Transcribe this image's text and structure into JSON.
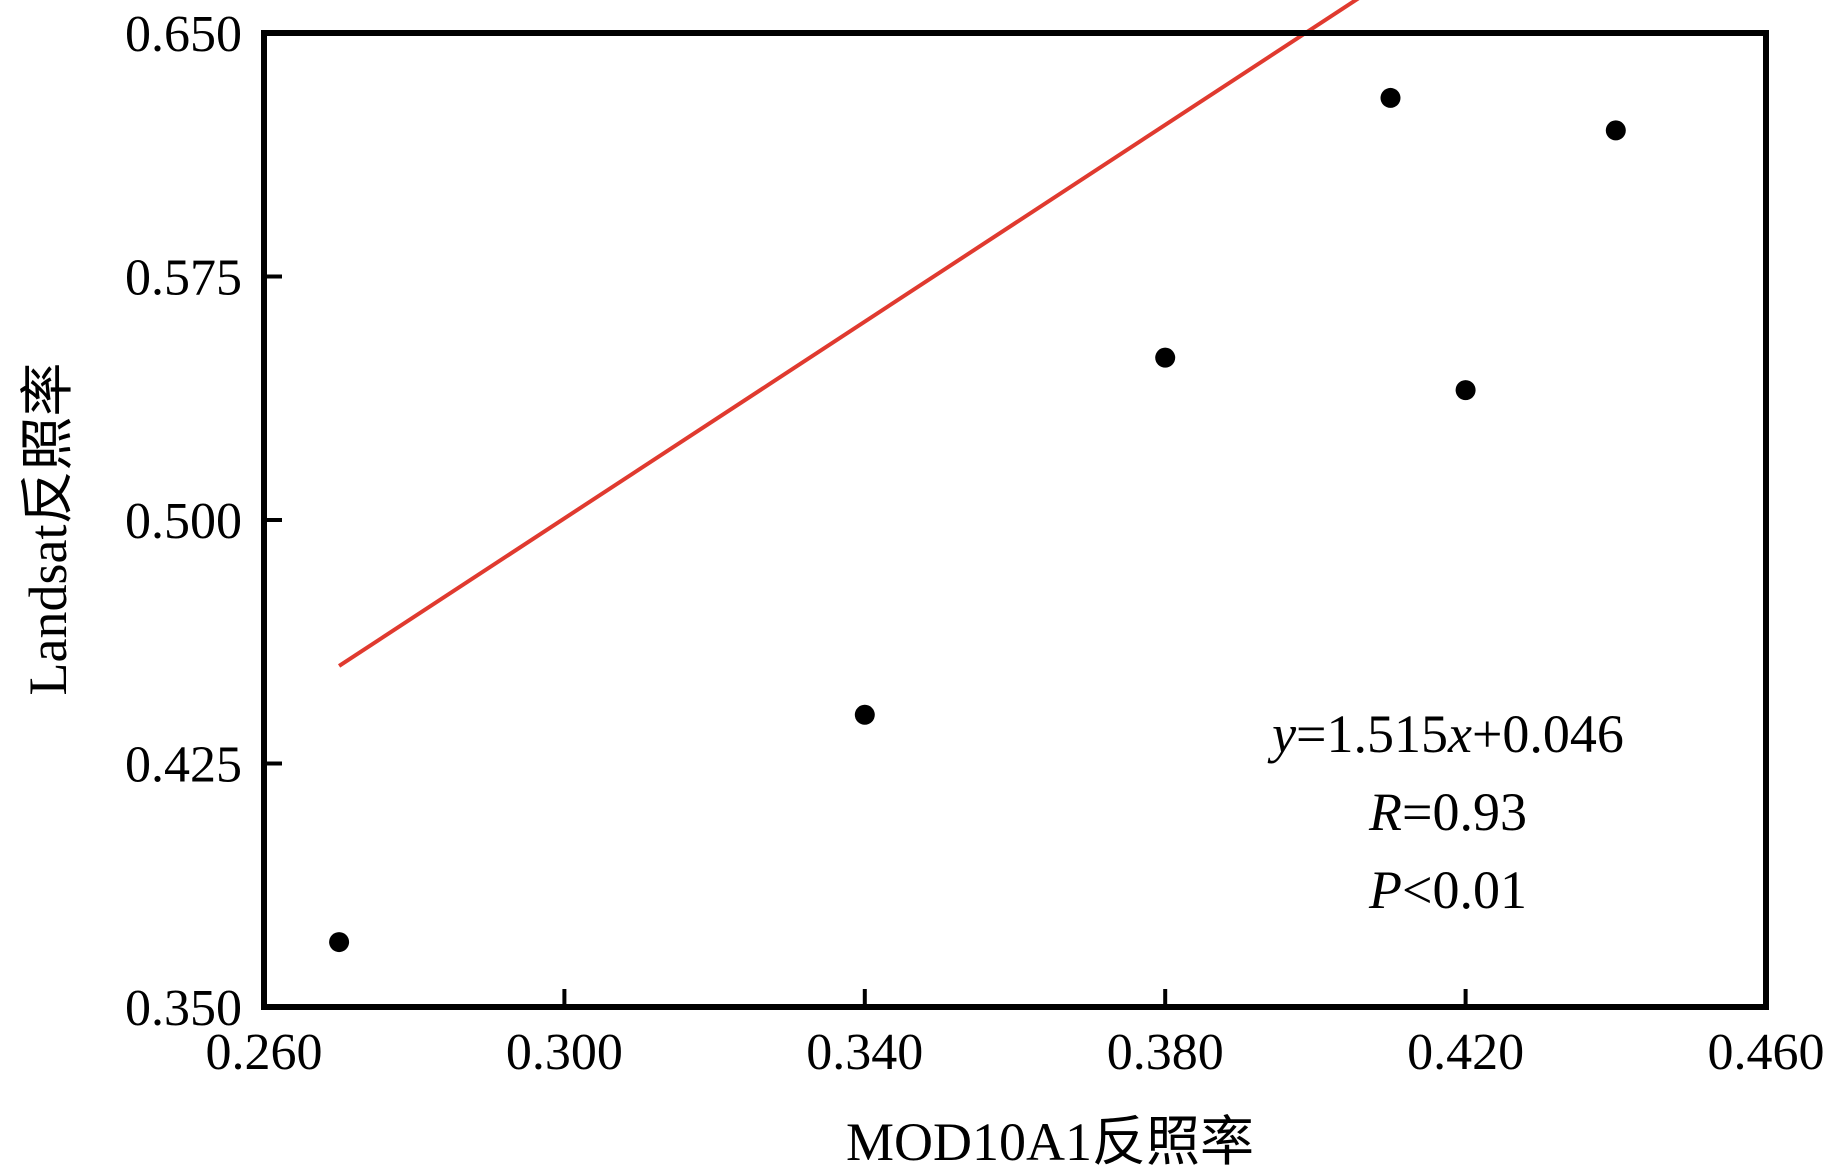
{
  "chart_data": {
    "type": "scatter",
    "title": "",
    "xlabel": "MOD10A1反照率",
    "ylabel": "Landsat反照率",
    "xlim": [
      0.26,
      0.46
    ],
    "ylim": [
      0.35,
      0.65
    ],
    "xticks": [
      "0.260",
      "0.300",
      "0.340",
      "0.380",
      "0.420",
      "0.460"
    ],
    "yticks": [
      "0.350",
      "0.425",
      "0.500",
      "0.575",
      "0.650"
    ],
    "grid": false,
    "legend": "none",
    "series": [
      {
        "points": [
          {
            "x": 0.27,
            "y": 0.37
          },
          {
            "x": 0.34,
            "y": 0.44
          },
          {
            "x": 0.38,
            "y": 0.55
          },
          {
            "x": 0.41,
            "y": 0.63
          },
          {
            "x": 0.42,
            "y": 0.54
          },
          {
            "x": 0.44,
            "y": 0.62
          }
        ],
        "color": "#000000"
      }
    ],
    "fit_line": {
      "slope": 1.515,
      "intercept": 0.046,
      "x_range": [
        0.27,
        0.44
      ],
      "color": "#e03a2f"
    },
    "annotations": {
      "equation": {
        "y": "y",
        "eq1": "=1.515",
        "x": "x",
        "eq2": "+0.046"
      },
      "r": {
        "var": "R",
        "value": "=0.93"
      },
      "p": {
        "var": "P",
        "value": "<0.01"
      }
    }
  }
}
